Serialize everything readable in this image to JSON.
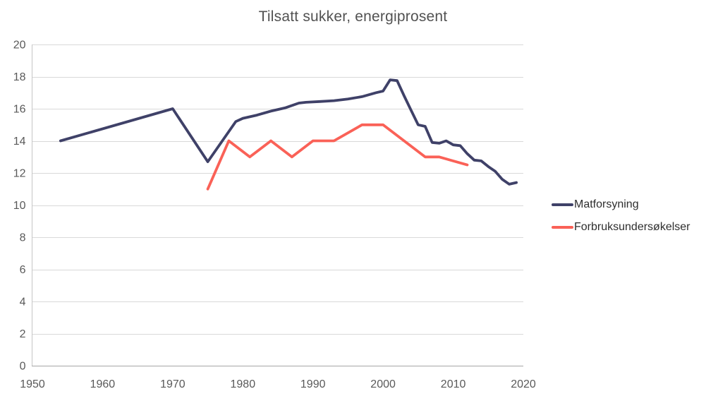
{
  "chart_data": {
    "type": "line",
    "title": "Tilsatt sukker, energiprosent",
    "xlabel": "",
    "ylabel": "",
    "xlim": [
      1950,
      2020
    ],
    "ylim": [
      0,
      20
    ],
    "x_ticks": [
      1950,
      1960,
      1970,
      1980,
      1990,
      2000,
      2010,
      2020
    ],
    "y_ticks": [
      0,
      2,
      4,
      6,
      8,
      10,
      12,
      14,
      16,
      18,
      20
    ],
    "grid": true,
    "legend_position": "right",
    "series": [
      {
        "name": "Matforsyning",
        "color": "#3f4168",
        "points": [
          [
            1954,
            14.0
          ],
          [
            1970,
            16.0
          ],
          [
            1975,
            12.7
          ],
          [
            1979,
            15.2
          ],
          [
            1980,
            15.4
          ],
          [
            1982,
            15.6
          ],
          [
            1984,
            15.85
          ],
          [
            1986,
            16.05
          ],
          [
            1988,
            16.35
          ],
          [
            1989,
            16.4
          ],
          [
            1991,
            16.45
          ],
          [
            1993,
            16.5
          ],
          [
            1995,
            16.6
          ],
          [
            1997,
            16.75
          ],
          [
            1999,
            17.0
          ],
          [
            2000,
            17.1
          ],
          [
            2001,
            17.8
          ],
          [
            2002,
            17.75
          ],
          [
            2003,
            16.8
          ],
          [
            2004,
            15.9
          ],
          [
            2005,
            15.0
          ],
          [
            2006,
            14.9
          ],
          [
            2007,
            13.9
          ],
          [
            2008,
            13.85
          ],
          [
            2009,
            14.0
          ],
          [
            2010,
            13.75
          ],
          [
            2011,
            13.7
          ],
          [
            2012,
            13.2
          ],
          [
            2013,
            12.8
          ],
          [
            2014,
            12.75
          ],
          [
            2015,
            12.4
          ],
          [
            2016,
            12.1
          ],
          [
            2017,
            11.6
          ],
          [
            2018,
            11.3
          ],
          [
            2019,
            11.4
          ]
        ]
      },
      {
        "name": "Forbruksundersøkelser",
        "color": "#fa6157",
        "points": [
          [
            1975,
            11.0
          ],
          [
            1978,
            14.0
          ],
          [
            1981,
            13.0
          ],
          [
            1984,
            14.0
          ],
          [
            1987,
            13.0
          ],
          [
            1990,
            14.0
          ],
          [
            1993,
            14.0
          ],
          [
            1997,
            15.0
          ],
          [
            2000,
            15.0
          ],
          [
            2006,
            13.0
          ],
          [
            2008,
            13.0
          ],
          [
            2012,
            12.5
          ]
        ]
      }
    ]
  },
  "colors": {
    "gridline": "#d9d9d9",
    "x_axis_line": "#a6a6a6",
    "y_axis_line": "#c6c6c6",
    "tick_label": "#595959",
    "title": "#525252",
    "legend_text": "#2e2e2e",
    "background": "#ffffff"
  }
}
